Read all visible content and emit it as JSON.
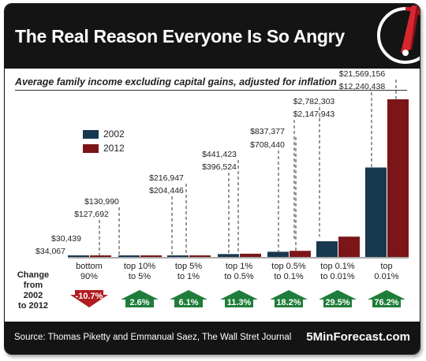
{
  "header": {
    "title": "The Real Reason Everyone Is So Angry"
  },
  "footer": {
    "source": "Source: Thomas Piketty and Emmanual Saez, The Wall Stret Journal",
    "brand": "5MinForecast.com"
  },
  "change_label": [
    "Change",
    "from",
    "2002",
    "to 2012"
  ],
  "colors": {
    "s2002": "#17384e",
    "s2012": "#7b1518",
    "up": "#1f7d3a",
    "down": "#b01e22"
  },
  "chart_data": {
    "type": "bar",
    "title": "Average family income excluding capital gains, adjusted for inflation",
    "categories": [
      [
        "bottom",
        "90%"
      ],
      [
        "top 10%",
        "to 5%"
      ],
      [
        "top 5%",
        "to 1%"
      ],
      [
        "top 1%",
        "to 0.5%"
      ],
      [
        "top 0.5%",
        "to 0.1%"
      ],
      [
        "top 0.1%",
        "to 0.01%"
      ],
      [
        "top",
        "0.01%"
      ]
    ],
    "series": [
      {
        "name": "2002",
        "values": [
          34067,
          127692,
          204446,
          396524,
          708440,
          2147943,
          12240438
        ],
        "labels": [
          "$34,067",
          "$127,692",
          "$204,446",
          "$396,524",
          "$708,440",
          "$2,147,943",
          "$12,240,438"
        ]
      },
      {
        "name": "2012",
        "values": [
          30439,
          130990,
          216947,
          441423,
          837377,
          2782303,
          21569156
        ],
        "labels": [
          "$30,439",
          "$130,990",
          "$216,947",
          "$441,423",
          "$837,377",
          "$2,782,303",
          "$21,569,156"
        ]
      }
    ],
    "changes": [
      "-10.7%",
      "2.6%",
      "6.1%",
      "11.3%",
      "18.2%",
      "29.5%",
      "76.2%"
    ],
    "change_direction": [
      "down",
      "up",
      "up",
      "up",
      "up",
      "up",
      "up"
    ],
    "legend_position": "left",
    "grid": false
  }
}
